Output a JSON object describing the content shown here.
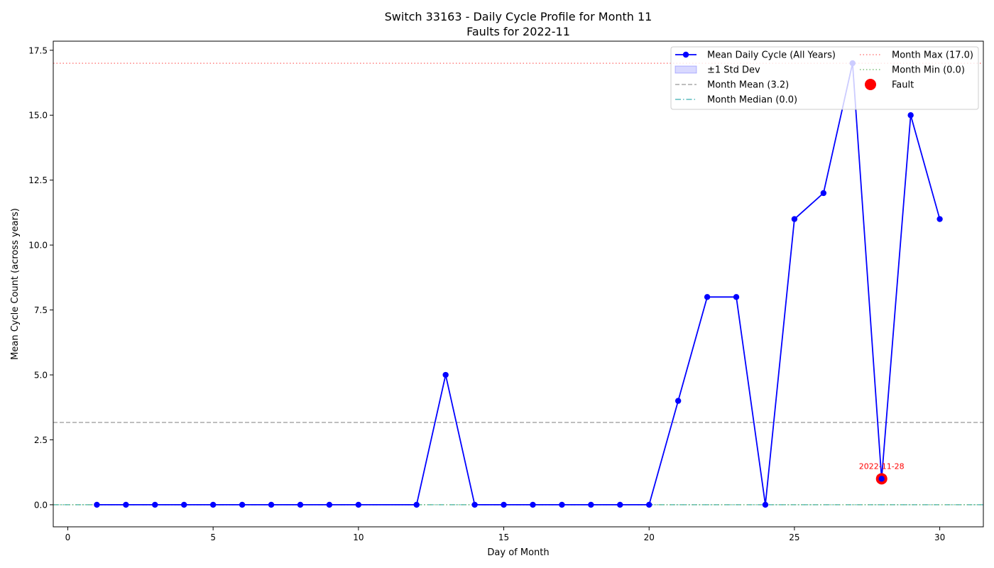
{
  "chart_data": {
    "type": "line",
    "title": "Switch 33163 - Daily Cycle Profile for Month 11",
    "subtitle": "Faults for 2022-11",
    "xlabel": "Day of Month",
    "ylabel": "Mean Cycle Count (across years)",
    "xlim": [
      -0.5,
      31.5
    ],
    "ylim": [
      -0.85,
      17.85
    ],
    "xticks": [
      0,
      5,
      10,
      15,
      20,
      25,
      30
    ],
    "xtick_labels": [
      "0",
      "5",
      "10",
      "15",
      "20",
      "25",
      "30"
    ],
    "yticks": [
      0.0,
      2.5,
      5.0,
      7.5,
      10.0,
      12.5,
      15.0,
      17.5
    ],
    "ytick_labels": [
      "0.0",
      "2.5",
      "5.0",
      "7.5",
      "10.0",
      "12.5",
      "15.0",
      "17.5"
    ],
    "grid": false,
    "legend_position": "top-right",
    "series": [
      {
        "name": "Mean Daily Cycle (All Years)",
        "color": "#0000ff",
        "x": [
          1,
          2,
          3,
          4,
          5,
          6,
          7,
          8,
          9,
          10,
          12,
          13,
          14,
          15,
          16,
          17,
          18,
          19,
          20,
          21,
          22,
          23,
          24,
          25,
          26,
          27,
          28,
          29,
          30
        ],
        "y": [
          0,
          0,
          0,
          0,
          0,
          0,
          0,
          0,
          0,
          0,
          0,
          5,
          0,
          0,
          0,
          0,
          0,
          0,
          0,
          4,
          8,
          8,
          0,
          11,
          12,
          17,
          1,
          15,
          11
        ]
      }
    ],
    "std_band": {
      "name": "±1 Std Dev",
      "color": "#0000ff"
    },
    "reference_lines": [
      {
        "name": "Month Mean (3.2)",
        "value": 3.17,
        "color": "#a9a9a9",
        "style": "dashed"
      },
      {
        "name": "Month Median (0.0)",
        "value": 0.0,
        "color": "#5bbcbd",
        "style": "dashdot"
      },
      {
        "name": "Month Max (17.0)",
        "value": 17.0,
        "color": "#ff8080",
        "style": "dotted"
      },
      {
        "name": "Month Min (0.0)",
        "value": 0.0,
        "color": "#7fbf7f",
        "style": "dotted"
      }
    ],
    "faults": [
      {
        "x": 28,
        "y": 1,
        "label": "2022-11-28",
        "color": "#ff0000"
      }
    ],
    "legend": [
      {
        "label": "Mean Daily Cycle (All Years)",
        "kind": "line-marker",
        "color": "#0000ff"
      },
      {
        "label": "±1 Std Dev",
        "kind": "patch",
        "color": "#0000ff"
      },
      {
        "label": "Month Mean (3.2)",
        "kind": "dashed",
        "color": "#a9a9a9"
      },
      {
        "label": "Month Median (0.0)",
        "kind": "dashdot",
        "color": "#5bbcbd"
      },
      {
        "label": "Month Max (17.0)",
        "kind": "dotted",
        "color": "#ff8080"
      },
      {
        "label": "Month Min (0.0)",
        "kind": "dotted",
        "color": "#7fbf7f"
      },
      {
        "label": "Fault",
        "kind": "big-marker",
        "color": "#ff0000"
      }
    ]
  }
}
